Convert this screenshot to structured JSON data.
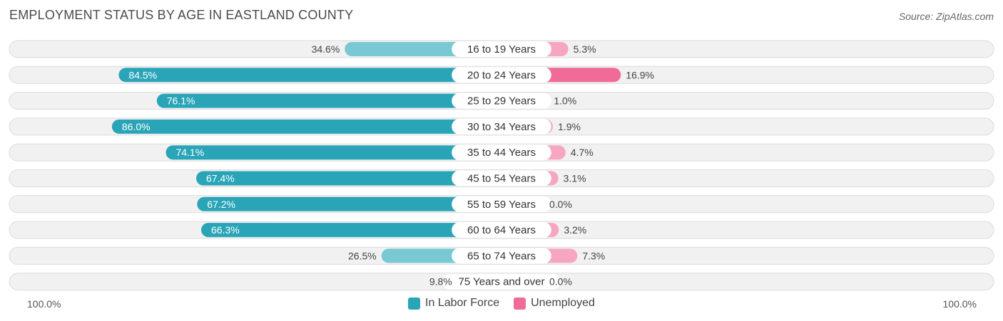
{
  "title": "EMPLOYMENT STATUS BY AGE IN EASTLAND COUNTY",
  "source": "Source: ZipAtlas.com",
  "axis": {
    "left_label": "100.0%",
    "right_label": "100.0%"
  },
  "colors": {
    "labor_dark": "#2aa5b8",
    "labor_light": "#78c9d4",
    "unemp_dark": "#f06b97",
    "unemp_light": "#f7a6c2"
  },
  "chart_data": {
    "type": "bar",
    "orientation": "horizontal-diverging",
    "title": "EMPLOYMENT STATUS BY AGE IN EASTLAND COUNTY",
    "categories": [
      "16 to 19 Years",
      "20 to 24 Years",
      "25 to 29 Years",
      "30 to 34 Years",
      "35 to 44 Years",
      "45 to 54 Years",
      "55 to 59 Years",
      "60 to 64 Years",
      "65 to 74 Years",
      "75 Years and over"
    ],
    "series": [
      {
        "name": "In Labor Force",
        "values": [
          34.6,
          84.5,
          76.1,
          86.0,
          74.1,
          67.4,
          67.2,
          66.3,
          26.5,
          9.8
        ],
        "labels": [
          "34.6%",
          "84.5%",
          "76.1%",
          "86.0%",
          "74.1%",
          "67.4%",
          "67.2%",
          "66.3%",
          "26.5%",
          "9.8%"
        ]
      },
      {
        "name": "Unemployed",
        "values": [
          5.3,
          16.9,
          1.0,
          1.9,
          4.7,
          3.1,
          0.0,
          3.2,
          7.3,
          0.0
        ],
        "labels": [
          "5.3%",
          "16.9%",
          "1.0%",
          "1.9%",
          "4.7%",
          "3.1%",
          "0.0%",
          "3.2%",
          "7.3%",
          "0.0%"
        ]
      }
    ],
    "xlim": [
      -100,
      100
    ],
    "legend": "bottom-center"
  }
}
